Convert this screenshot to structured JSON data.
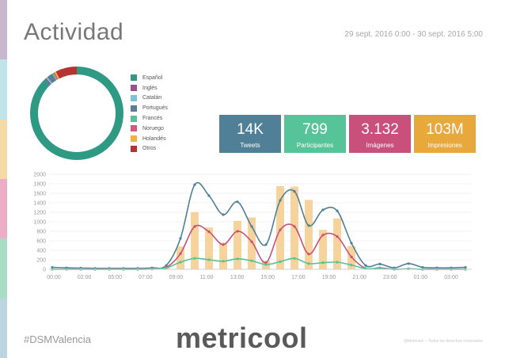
{
  "title": "Actividad",
  "date_range": "29 sept. 2016 0:00 - 30 sept. 2016 5:00",
  "side_colors": [
    "#c9b6cf",
    "#bfe4ea",
    "#f5d9a6",
    "#ecaec6",
    "#a8dcc5",
    "#bcd5e3"
  ],
  "languages": [
    {
      "name": "Español",
      "color": "#2e9a83",
      "share": 0.88
    },
    {
      "name": "Inglés",
      "color": "#9b4f8e",
      "share": 0.005
    },
    {
      "name": "Catalán",
      "color": "#7dc3d8",
      "share": 0.005
    },
    {
      "name": "Portugués",
      "color": "#5b7f97",
      "share": 0.02
    },
    {
      "name": "Francés",
      "color": "#5dbf95",
      "share": 0.005
    },
    {
      "name": "Noruego",
      "color": "#d45a7a",
      "share": 0.005
    },
    {
      "name": "Holandés",
      "color": "#f2b43d",
      "share": 0.005
    },
    {
      "name": "Otros",
      "color": "#b83232",
      "share": 0.075
    }
  ],
  "stats": [
    {
      "value": "14K",
      "label": "Tweets",
      "color": "#4f8097"
    },
    {
      "value": "799",
      "label": "Participantes",
      "color": "#56c398"
    },
    {
      "value": "3.132",
      "label": "Imágenes",
      "color": "#c9507a"
    },
    {
      "value": "103M",
      "label": "Impresiones",
      "color": "#e9a83b"
    }
  ],
  "chart_data": {
    "type": "bar",
    "y_ticks": [
      0,
      200,
      400,
      600,
      800,
      1000,
      1200,
      1400,
      1600,
      1800,
      2000
    ],
    "ylim": [
      0,
      2000
    ],
    "x_tick_labels": [
      "00:00",
      "02:00",
      "05:00",
      "07:00",
      "09:00",
      "11:00",
      "13:00",
      "15:00",
      "17:00",
      "19:00",
      "21:00",
      "23:00",
      "01:00",
      "03:00"
    ],
    "hours": [
      "00:00",
      "01:00",
      "02:00",
      "03:00",
      "04:00",
      "05:00",
      "06:00",
      "07:00",
      "08:00",
      "09:00",
      "10:00",
      "11:00",
      "12:00",
      "13:00",
      "14:00",
      "15:00",
      "16:00",
      "17:00",
      "18:00",
      "19:00",
      "20:00",
      "21:00",
      "22:00",
      "23:00",
      "00:00",
      "01:00",
      "02:00",
      "03:00",
      "04:00",
      "05:00"
    ],
    "bars": [
      0,
      0,
      0,
      0,
      0,
      0,
      0,
      0,
      60,
      480,
      1200,
      880,
      560,
      1020,
      1090,
      180,
      1750,
      1740,
      1460,
      830,
      1070,
      490,
      0,
      0,
      0,
      0,
      0,
      0,
      0,
      0
    ],
    "bar_color": "#f6d39a",
    "series": [
      {
        "color": "#4f8097",
        "values": [
          40,
          30,
          25,
          20,
          20,
          20,
          20,
          30,
          80,
          650,
          1780,
          1550,
          1150,
          1420,
          900,
          520,
          1450,
          1640,
          920,
          1250,
          1230,
          550,
          80,
          110,
          30,
          120,
          40,
          30,
          30,
          40
        ]
      },
      {
        "color": "#c9507a",
        "values": [
          0,
          0,
          0,
          0,
          0,
          0,
          0,
          10,
          40,
          330,
          900,
          790,
          520,
          800,
          580,
          140,
          830,
          900,
          320,
          720,
          690,
          260,
          20,
          30,
          0,
          10,
          0,
          0,
          0,
          0
        ]
      },
      {
        "color": "#56c398",
        "values": [
          0,
          0,
          0,
          0,
          0,
          0,
          0,
          5,
          30,
          150,
          230,
          200,
          170,
          220,
          180,
          100,
          160,
          230,
          120,
          140,
          150,
          90,
          15,
          20,
          0,
          10,
          0,
          0,
          0,
          0
        ]
      }
    ]
  },
  "hashtag": "#DSMValencia",
  "logo": "metricool",
  "footnote": "@Metricool – Todos los derechos reservados"
}
